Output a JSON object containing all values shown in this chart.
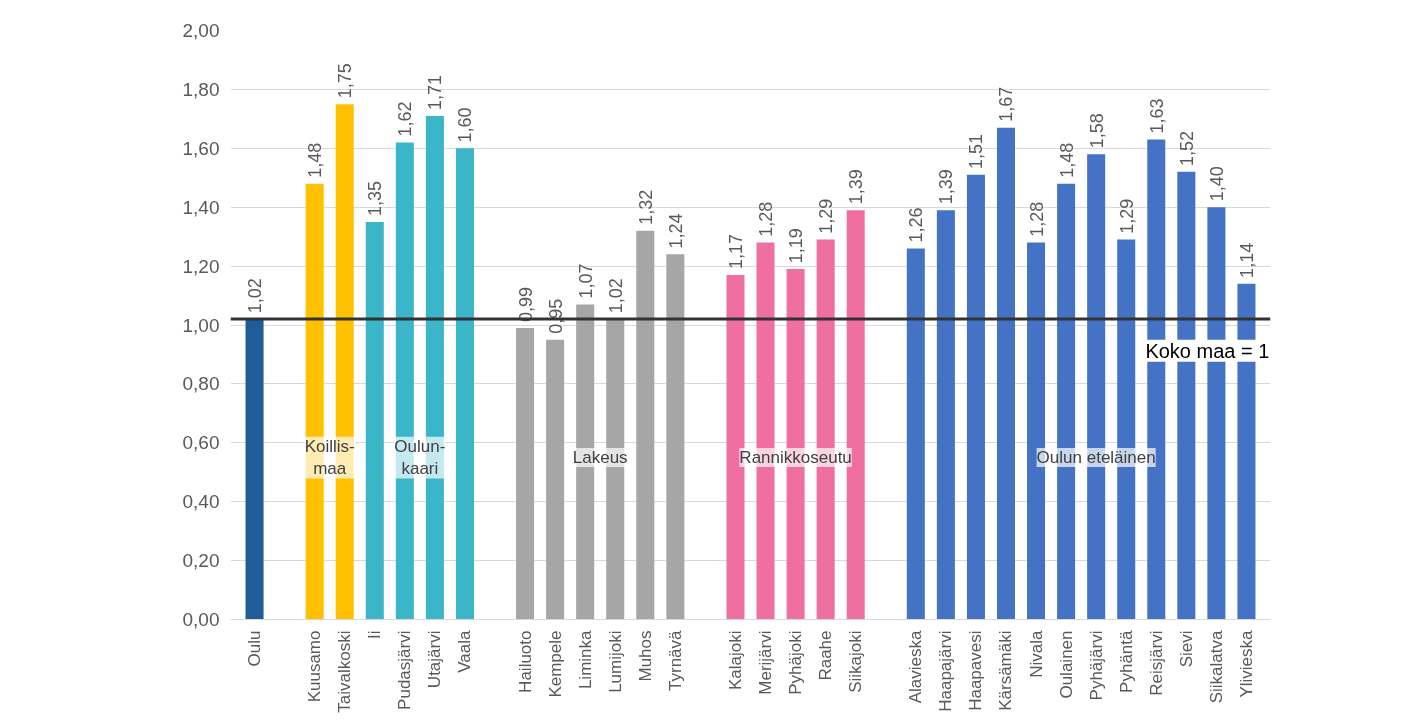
{
  "chart_data": {
    "type": "bar",
    "categories": [
      "Oulu",
      null,
      "Kuusamo",
      "Taivalkoski",
      "Ii",
      "Pudasjärvi",
      "Utajärvi",
      "Vaala",
      null,
      "Hailuoto",
      "Kempele",
      "Liminka",
      "Lumijoki",
      "Muhos",
      "Tyrnävä",
      null,
      "Kalajoki",
      "Merijärvi",
      "Pyhäjoki",
      "Raahe",
      "Siikajoki",
      null,
      "Alavieska",
      "Haapajärvi",
      "Haapavesi",
      "Kärsämäki",
      "Nivala",
      "Oulainen",
      "Pyhäjärvi",
      "Pyhäntä",
      "Reisjärvi",
      "Sievi",
      "Siikalatva",
      "Ylivieska"
    ],
    "values": [
      1.02,
      null,
      1.48,
      1.75,
      1.35,
      1.62,
      1.71,
      1.6,
      null,
      0.99,
      0.95,
      1.07,
      1.02,
      1.32,
      1.24,
      null,
      1.17,
      1.28,
      1.19,
      1.29,
      1.39,
      null,
      1.26,
      1.39,
      1.51,
      1.67,
      1.28,
      1.48,
      1.58,
      1.29,
      1.63,
      1.52,
      1.4,
      1.14
    ],
    "value_labels": [
      "1,02",
      null,
      "1,48",
      "1,75",
      "1,35",
      "1,62",
      "1,71",
      "1,60",
      null,
      "0,99",
      "0,95",
      "1,07",
      "1,02",
      "1,32",
      "1,24",
      null,
      "1,17",
      "1,28",
      "1,19",
      "1,29",
      "1,39",
      null,
      "1,26",
      "1,39",
      "1,51",
      "1,67",
      "1,28",
      "1,48",
      "1,58",
      "1,29",
      "1,63",
      "1,52",
      "1,40",
      "1,14"
    ],
    "colors": [
      "#1f5c99",
      null,
      "#ffc000",
      "#ffc000",
      "#3bb5c8",
      "#3bb5c8",
      "#3bb5c8",
      "#3bb5c8",
      null,
      "#a6a6a6",
      "#a6a6a6",
      "#a6a6a6",
      "#a6a6a6",
      "#a6a6a6",
      "#a6a6a6",
      null,
      "#ef6fa0",
      "#ef6fa0",
      "#ef6fa0",
      "#ef6fa0",
      "#ef6fa0",
      null,
      "#4472c4",
      "#4472c4",
      "#4472c4",
      "#4472c4",
      "#4472c4",
      "#4472c4",
      "#4472c4",
      "#4472c4",
      "#4472c4",
      "#4472c4",
      "#4472c4",
      "#4472c4"
    ],
    "ylim": [
      0,
      2
    ],
    "yticks": [
      {
        "value": 0,
        "label": "0,00"
      },
      {
        "value": 0.2,
        "label": "0,20"
      },
      {
        "value": 0.4,
        "label": "0,40"
      },
      {
        "value": 0.6,
        "label": "0,60"
      },
      {
        "value": 0.8,
        "label": "0,80"
      },
      {
        "value": 1.0,
        "label": "1,00"
      },
      {
        "value": 1.2,
        "label": "1,20"
      },
      {
        "value": 1.4,
        "label": "1,40"
      },
      {
        "value": 1.6,
        "label": "1,60"
      },
      {
        "value": 1.8,
        "label": "1,80"
      },
      {
        "value": 2.0,
        "label": "2,00"
      }
    ],
    "grid": "y",
    "ref_lines": [
      {
        "axis": "y",
        "value": 1.02,
        "label": "Koko maa = 1",
        "color": "#333333",
        "line_style": "solid"
      }
    ],
    "annotations": [
      "Koillis-\nmaa",
      "Oulun-\nkaari",
      "Lakeus",
      "Rannikkoseutu",
      "Oulun eteläinen"
    ]
  }
}
